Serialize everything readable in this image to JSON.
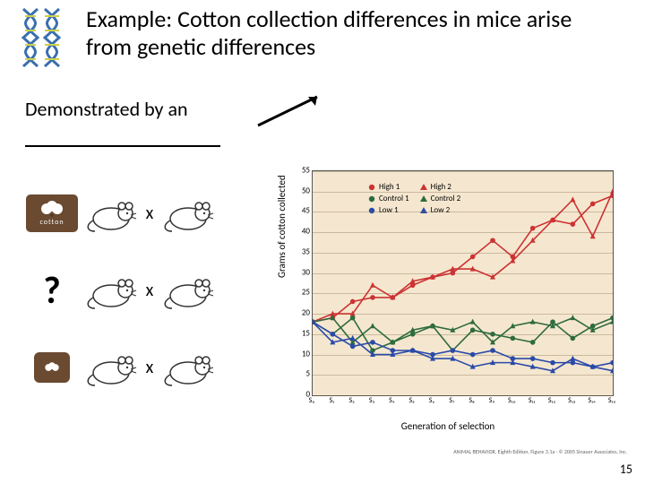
{
  "title": "Example:  Cotton collection differences in mice arise from genetic differences",
  "subtitle": "Demonstrated by an",
  "page_number": "15",
  "attribution": "ANIMAL BEHAVIOR, Eighth Edition, Figure 3.1a · © 2005 Sinauer Associates, Inc.",
  "left": {
    "qmark": "?",
    "cross_symbol": "x",
    "cotton_label": "cotton"
  },
  "chart": {
    "type": "line",
    "background_color": "#f5e7cf",
    "grid_color": "rgba(120,100,70,0.35)",
    "xlabel": "Generation of selection",
    "ylabel": "Grams of cotton collected",
    "xlim": [
      0,
      15
    ],
    "ylim": [
      0,
      55
    ],
    "ytick_step": 5,
    "xticks": [
      "S₀",
      "S₁",
      "S₂",
      "S₃",
      "S₄",
      "S₅",
      "S₆",
      "S₇",
      "S₈",
      "S₉",
      "S₁₀",
      "S₁₁",
      "S₁₂",
      "S₁₃",
      "S₁₄",
      "S₁₅"
    ],
    "label_fontsize": 11,
    "tick_fontsize": 9,
    "legend_fontsize": 9,
    "series": [
      {
        "name": "High 1",
        "marker": "circle",
        "color": "#cc3333",
        "y": [
          18,
          19,
          23,
          24,
          24,
          27,
          29,
          30,
          34,
          38,
          34,
          41,
          43,
          42,
          47,
          49
        ]
      },
      {
        "name": "High 2",
        "marker": "triangle",
        "color": "#cc3333",
        "y": [
          18,
          20,
          20,
          27,
          24,
          28,
          29,
          31,
          31,
          29,
          33,
          38,
          43,
          48,
          39,
          50
        ]
      },
      {
        "name": "Control 1",
        "marker": "circle",
        "color": "#2e6b3e",
        "y": [
          18,
          15,
          19,
          11,
          13,
          15,
          17,
          11,
          16,
          15,
          14,
          13,
          18,
          14,
          17,
          19
        ]
      },
      {
        "name": "Control 2",
        "marker": "triangle",
        "color": "#2e6b3e",
        "y": [
          18,
          19,
          13,
          17,
          13,
          16,
          17,
          16,
          18,
          13,
          17,
          18,
          17,
          19,
          16,
          18
        ]
      },
      {
        "name": "Low 1",
        "marker": "circle",
        "color": "#2a4aa8",
        "y": [
          18,
          15,
          12,
          13,
          11,
          11,
          10,
          11,
          10,
          11,
          9,
          9,
          8,
          8,
          7,
          8
        ]
      },
      {
        "name": "Low 2",
        "marker": "triangle",
        "color": "#2a4aa8",
        "y": [
          18,
          13,
          14,
          10,
          10,
          11,
          9,
          9,
          7,
          8,
          8,
          7,
          6,
          9,
          7,
          6
        ]
      }
    ]
  }
}
